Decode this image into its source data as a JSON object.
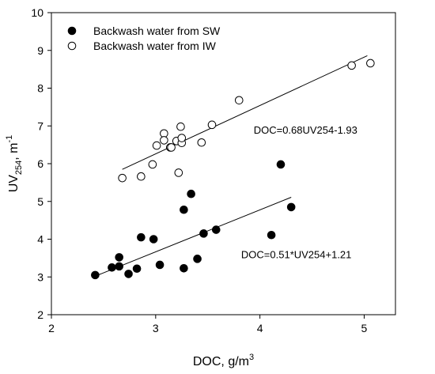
{
  "chart_data": {
    "type": "scatter",
    "xlabel": "DOC, g/m",
    "xlabel_sup": "3",
    "ylabel": "UV",
    "ylabel_sub": "254",
    "ylabel_unit": ", m",
    "ylabel_sup": "-1",
    "xlim": [
      2,
      5.3
    ],
    "ylim": [
      2,
      10
    ],
    "xticks": [
      2,
      3,
      4,
      5
    ],
    "yticks": [
      2,
      3,
      4,
      5,
      6,
      7,
      8,
      9,
      10
    ],
    "legend_position": "top-left",
    "series": [
      {
        "name": "Backwash water from SW",
        "marker": "filled-circle",
        "points": [
          [
            2.42,
            3.05
          ],
          [
            2.58,
            3.25
          ],
          [
            2.65,
            3.52
          ],
          [
            2.65,
            3.28
          ],
          [
            2.74,
            3.08
          ],
          [
            2.82,
            3.22
          ],
          [
            2.86,
            4.05
          ],
          [
            2.98,
            4.0
          ],
          [
            3.04,
            3.32
          ],
          [
            3.27,
            4.78
          ],
          [
            3.27,
            3.23
          ],
          [
            3.34,
            5.2
          ],
          [
            3.4,
            3.48
          ],
          [
            3.46,
            4.15
          ],
          [
            3.58,
            4.25
          ],
          [
            4.11,
            4.11
          ],
          [
            4.2,
            5.98
          ],
          [
            4.3,
            4.85
          ]
        ],
        "trendline": {
          "x": [
            2.42,
            4.3
          ],
          "y": [
            3.02,
            5.11
          ]
        }
      },
      {
        "name": "Backwash water from IW",
        "marker": "open-circle",
        "points": [
          [
            2.68,
            5.62
          ],
          [
            2.86,
            5.66
          ],
          [
            2.97,
            5.98
          ],
          [
            3.01,
            6.48
          ],
          [
            3.08,
            6.8
          ],
          [
            3.08,
            6.62
          ],
          [
            3.14,
            6.43
          ],
          [
            3.15,
            6.43
          ],
          [
            3.2,
            6.6
          ],
          [
            3.22,
            5.76
          ],
          [
            3.24,
            6.98
          ],
          [
            3.25,
            6.55
          ],
          [
            3.25,
            6.68
          ],
          [
            3.44,
            6.56
          ],
          [
            3.54,
            7.03
          ],
          [
            3.8,
            7.68
          ],
          [
            4.88,
            8.6
          ],
          [
            5.06,
            8.66
          ]
        ],
        "trendline": {
          "x": [
            2.68,
            5.03
          ],
          "y": [
            5.85,
            8.86
          ]
        }
      }
    ],
    "annotations": [
      {
        "text": "DOC=0.68UV254-1.93",
        "x": 3.94,
        "y": 6.9
      },
      {
        "text": "DOC=0.51*UV254+1.21",
        "x": 3.82,
        "y": 3.6
      }
    ]
  }
}
